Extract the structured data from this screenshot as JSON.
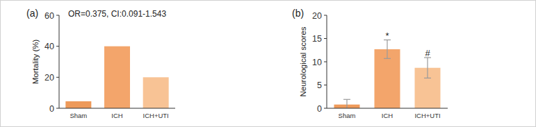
{
  "chart_data": [
    {
      "type": "bar",
      "title": "(a)",
      "subtitle": "OR=0.375, CI:0.091-1.543",
      "y_label": "Mortality (%)",
      "categories": [
        "Sham",
        "ICH",
        "ICH+UTI"
      ],
      "values": [
        4.5,
        40,
        20
      ],
      "colors": [
        "#ee9a5a",
        "#f3a56b",
        "#f8c395"
      ],
      "ylim": [
        0,
        60
      ],
      "yticks": [
        0,
        20,
        40,
        60
      ]
    },
    {
      "type": "bar",
      "title": "(b)",
      "y_label": "Neurological scores",
      "categories": [
        "Sham",
        "ICH",
        "ICH+UTI"
      ],
      "values": [
        0.8,
        12.7,
        8.7
      ],
      "errors": [
        1.1,
        2.0,
        2.2
      ],
      "colors": [
        "#ee9a5a",
        "#f3a56b",
        "#f8c395"
      ],
      "annotations": [
        {
          "text": "*",
          "category": "ICH"
        },
        {
          "text": "#",
          "category": "ICH+UTI"
        }
      ],
      "ylim": [
        0,
        20
      ],
      "yticks": [
        0,
        5,
        10,
        15,
        20
      ]
    }
  ]
}
